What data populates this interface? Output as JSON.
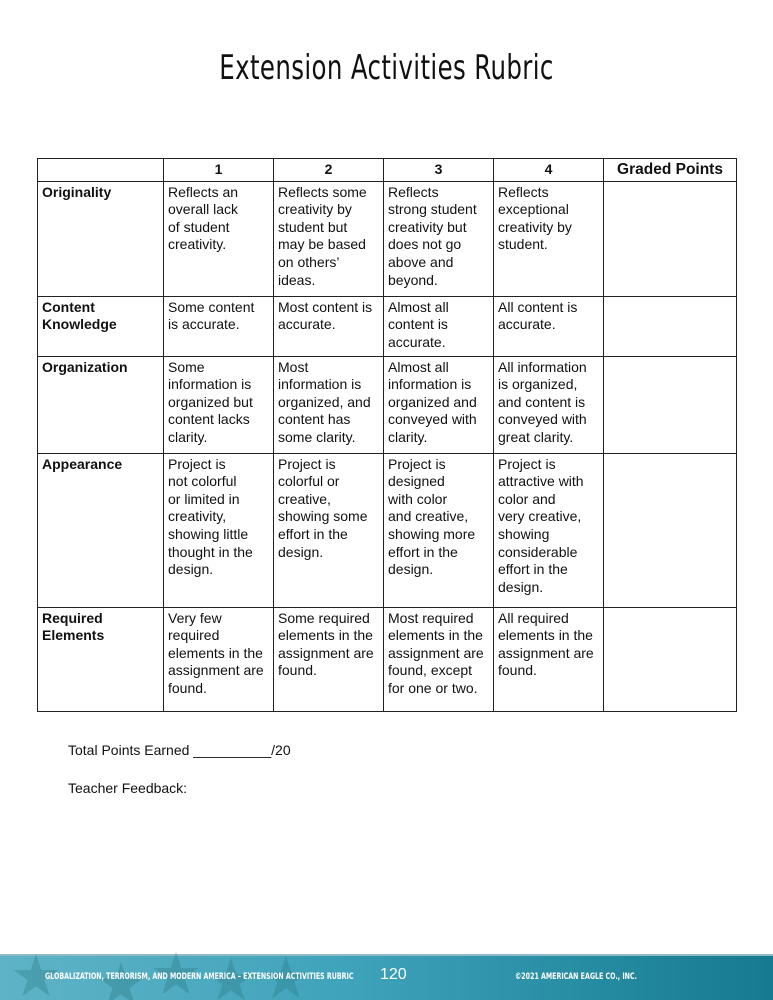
{
  "title": "Extension Activities Rubric",
  "table": {
    "headers": [
      "",
      "1",
      "2",
      "3",
      "4",
      "Graded Points"
    ],
    "rows": [
      {
        "criterion": "Originality",
        "cells": [
          "Reflects an\noverall lack\nof student\ncreativity.",
          "Reflects some\ncreativity by\nstudent but\nmay be based\non others’\nideas.",
          "Reflects\nstrong student\ncreativity but\ndoes not go\nabove and\nbeyond.",
          "Reflects\nexceptional\ncreativity by\nstudent.",
          ""
        ]
      },
      {
        "criterion": "Content\nKnowledge",
        "cells": [
          "Some content\nis accurate.",
          "Most content is\naccurate.",
          "Almost all\ncontent is\naccurate.",
          "All content is\naccurate.",
          ""
        ]
      },
      {
        "criterion": "Organization",
        "cells": [
          "Some\ninformation is\norganized but\ncontent lacks\nclarity.",
          "Most\ninformation is\norganized, and\ncontent has\nsome clarity.",
          "Almost all\ninformation is\norganized and\nconveyed with\nclarity.",
          "All information\nis organized,\nand content is\nconveyed with\ngreat clarity.",
          ""
        ]
      },
      {
        "criterion": "Appearance",
        "cells": [
          "Project is\nnot colorful\nor limited in\ncreativity,\nshowing little\nthought in the\ndesign.",
          "Project is\ncolorful or\ncreative,\nshowing some\neffort in the\ndesign.",
          "Project is\ndesigned\nwith color\nand creative,\nshowing more\neffort in the\ndesign.",
          "Project is\nattractive with\ncolor and\nvery creative,\nshowing\nconsiderable\neffort in the\ndesign.",
          ""
        ]
      },
      {
        "criterion": "Required\nElements",
        "cells": [
          "Very few\nrequired\nelements in the\nassignment are\nfound.",
          "Some required\nelements in the\nassignment are\nfound.",
          "Most required\nelements in the\nassignment are\nfound, except\nfor one or two.",
          "All required\nelements in the\nassignment are\nfound.",
          ""
        ]
      }
    ]
  },
  "total_points": "Total Points Earned __________/20",
  "teacher_feedback": "Teacher Feedback:",
  "footer": {
    "left": "GLOBALIZATION, TERRORISM, AND MODERN AMERICA – EXTENSION ACTIVITIES RUBRIC",
    "page_number": "120",
    "copyright": "©2021 AMERICAN EAGLE CO., INC."
  }
}
